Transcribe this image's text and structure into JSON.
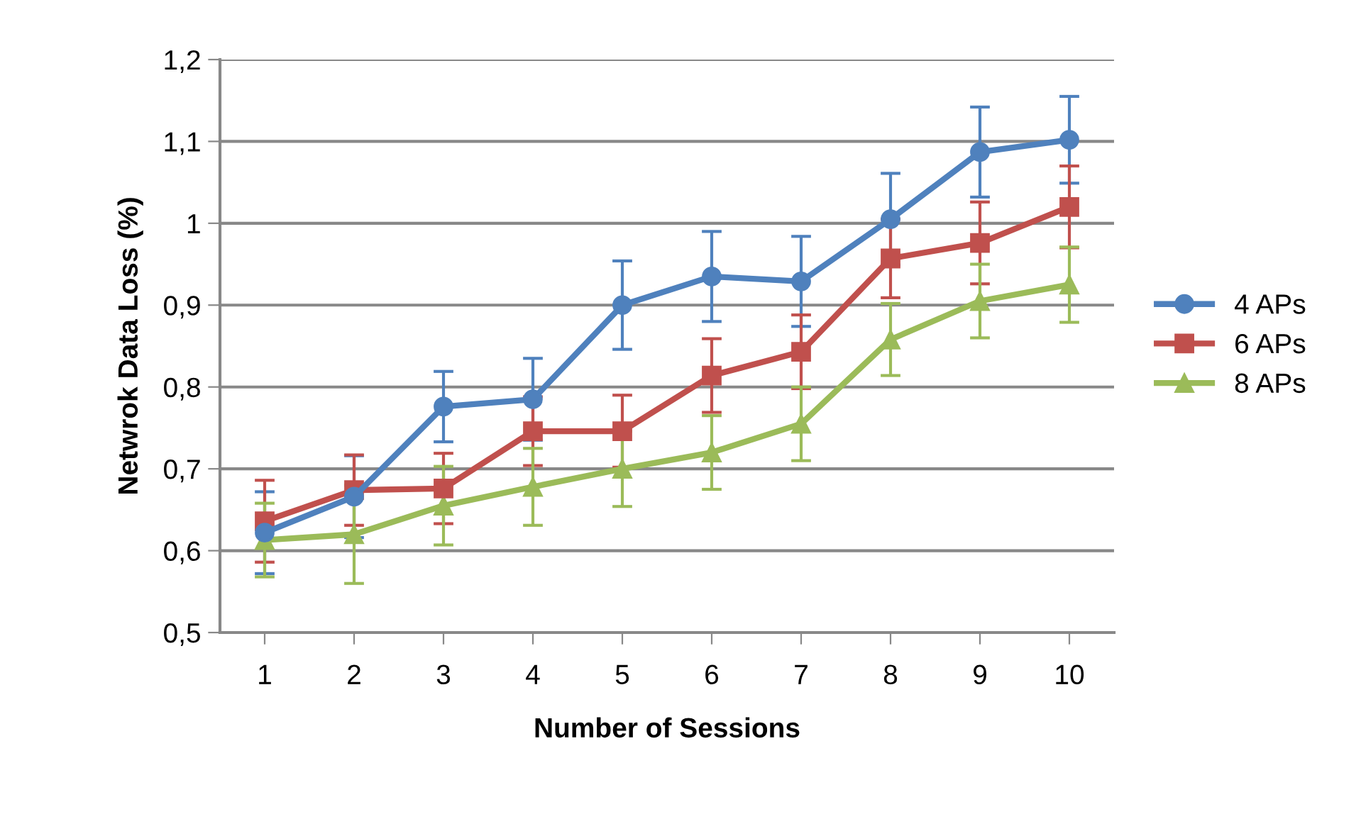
{
  "chart_data": {
    "type": "line",
    "xlabel": "Number of Sessions",
    "ylabel": "Netwrok Data Loss (%)",
    "categories": [
      "1",
      "2",
      "3",
      "4",
      "5",
      "6",
      "7",
      "8",
      "9",
      "10"
    ],
    "series": [
      {
        "name": "4 APs",
        "color": "#4f81bd",
        "marker": "circle",
        "values": [
          0.622,
          0.666,
          0.776,
          0.785,
          0.9,
          0.935,
          0.929,
          1.005,
          1.087,
          1.102
        ],
        "errors": [
          0.05,
          0.05,
          0.043,
          0.05,
          0.054,
          0.055,
          0.055,
          0.056,
          0.055,
          0.053
        ]
      },
      {
        "name": "6 APs",
        "color": "#c0504d",
        "marker": "square",
        "values": [
          0.636,
          0.674,
          0.676,
          0.746,
          0.746,
          0.814,
          0.843,
          0.957,
          0.976,
          1.02
        ],
        "errors": [
          0.05,
          0.043,
          0.043,
          0.042,
          0.044,
          0.045,
          0.045,
          0.048,
          0.05,
          0.05
        ]
      },
      {
        "name": "8 APs",
        "color": "#9bbb59",
        "marker": "triangle",
        "values": [
          0.613,
          0.62,
          0.655,
          0.678,
          0.7,
          0.72,
          0.755,
          0.858,
          0.905,
          0.925
        ],
        "errors": [
          0.045,
          0.06,
          0.048,
          0.047,
          0.046,
          0.045,
          0.045,
          0.044,
          0.045,
          0.046
        ]
      }
    ],
    "ylim": [
      0.5,
      1.2
    ],
    "yticks": [
      {
        "value": 0.5,
        "label": "0,5"
      },
      {
        "value": 0.6,
        "label": "0,6"
      },
      {
        "value": 0.7,
        "label": "0,7"
      },
      {
        "value": 0.8,
        "label": "0,8"
      },
      {
        "value": 0.9,
        "label": "0,9"
      },
      1,
      {
        "value": 1.1,
        "label": "1,1"
      },
      {
        "value": 1.2,
        "label": "1,2"
      }
    ],
    "grid": "y",
    "legend": "right",
    "line_style": "solid"
  }
}
